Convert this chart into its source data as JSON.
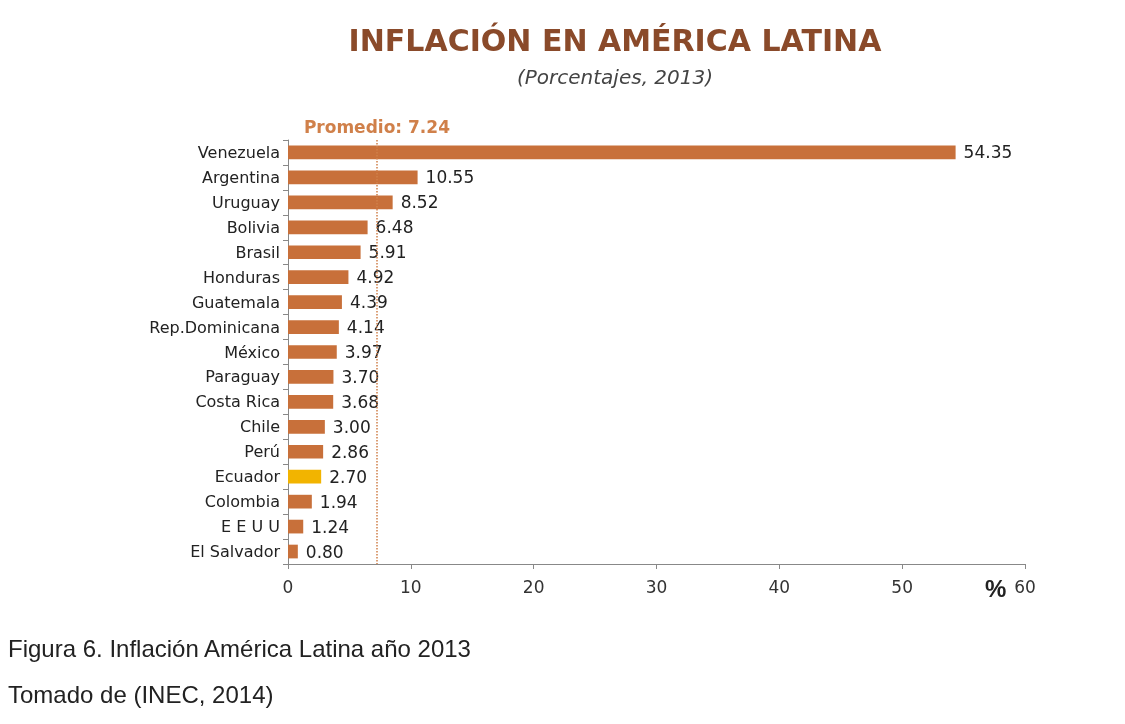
{
  "chart_data": {
    "type": "bar",
    "orientation": "horizontal",
    "title": "INFLACIÓN EN AMÉRICA LATINA",
    "subtitle": "(Porcentajes, 2013)",
    "xlabel": "%",
    "categories": [
      "Venezuela",
      "Argentina",
      "Uruguay",
      "Bolivia",
      "Brasil",
      "Honduras",
      "Guatemala",
      "Rep.Dominicana",
      "México",
      "Paraguay",
      "Costa Rica",
      "Chile",
      "Perú",
      "Ecuador",
      "Colombia",
      "E E U U",
      "El Salvador"
    ],
    "values": [
      54.35,
      10.55,
      8.52,
      6.48,
      5.91,
      4.92,
      4.39,
      4.14,
      3.97,
      3.7,
      3.68,
      3.0,
      2.86,
      2.7,
      1.94,
      1.24,
      0.8
    ],
    "value_labels": [
      "54.35",
      "10.55",
      "8.52",
      "6.48",
      "5.91",
      "4.92",
      "4.39",
      "4.14",
      "3.97",
      "3.70",
      "3.68",
      "3.00",
      "2.86",
      "2.70",
      "1.94",
      "1.24",
      "0.80"
    ],
    "colors": [
      "#c8703a",
      "#c8703a",
      "#c8703a",
      "#c8703a",
      "#c8703a",
      "#c8703a",
      "#c8703a",
      "#c8703a",
      "#c8703a",
      "#c8703a",
      "#c8703a",
      "#c8703a",
      "#c8703a",
      "#f2b400",
      "#c8703a",
      "#c8703a",
      "#c8703a"
    ],
    "xlim": [
      0,
      60
    ],
    "xticks": [
      0,
      10,
      20,
      30,
      40,
      50,
      60
    ],
    "ref_lines": [
      {
        "axis": "x",
        "value": 7.24,
        "label": "Promedio: 7.24",
        "color": "#d0804a",
        "line_style": "dotted"
      }
    ],
    "grid": false,
    "annotations": [
      "Figura 6. Inflación América Latina año 2013",
      "Tomado de (INEC, 2014)"
    ]
  }
}
